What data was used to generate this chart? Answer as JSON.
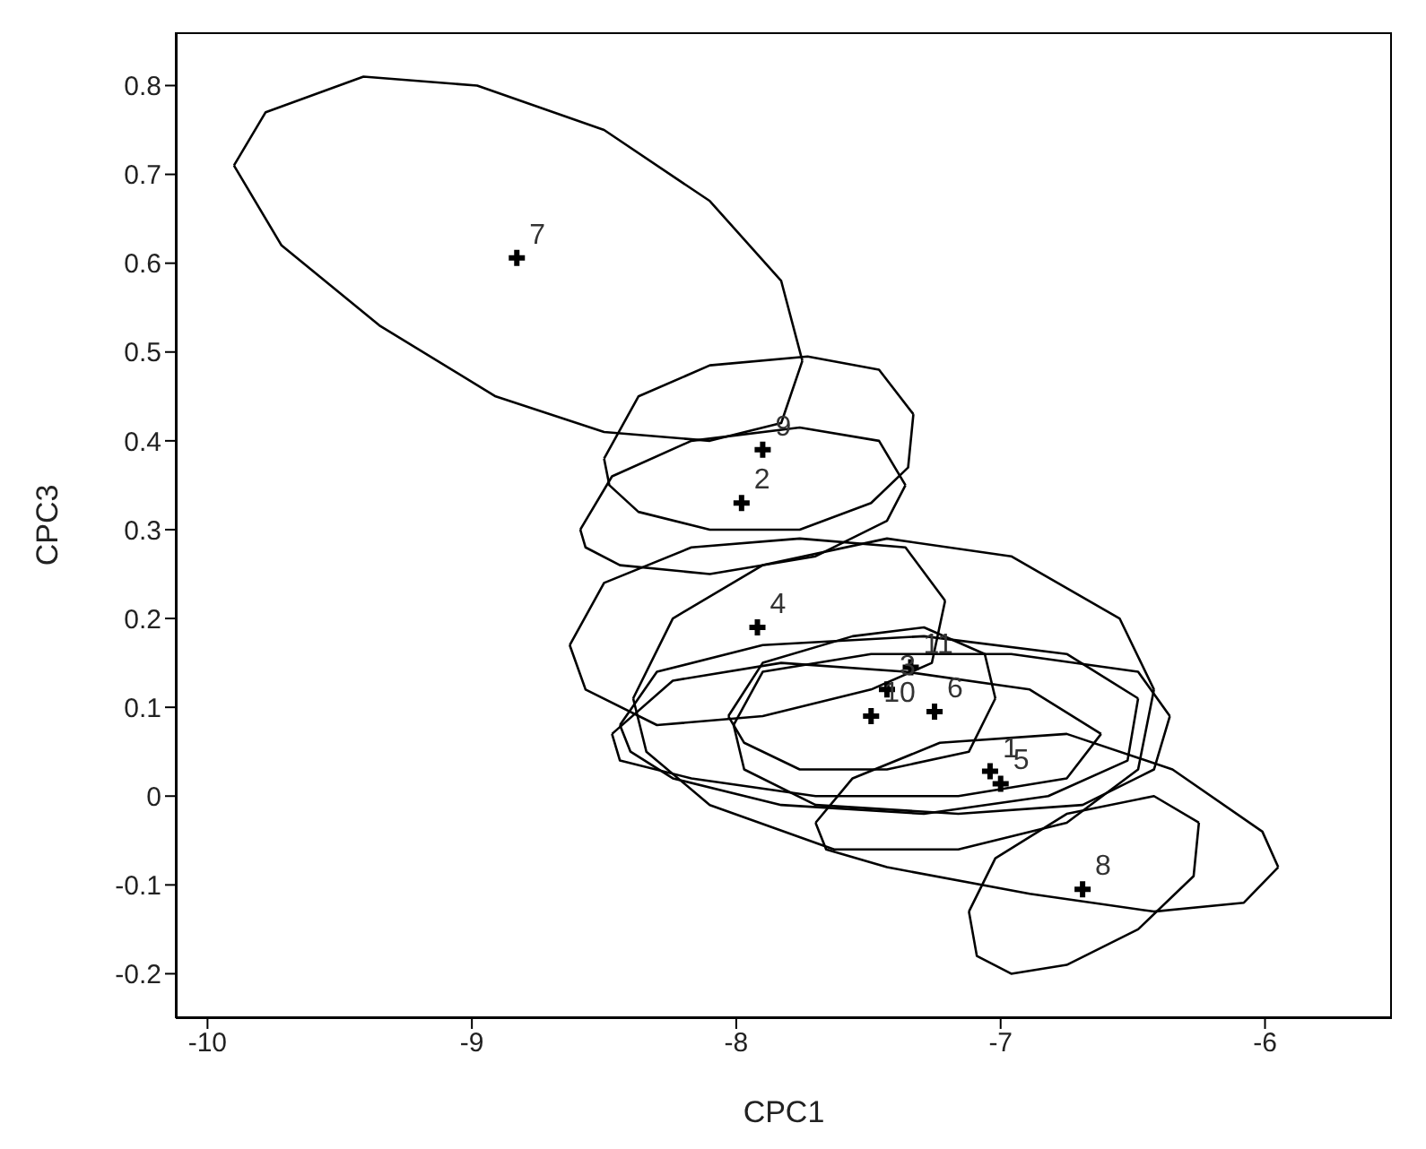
{
  "chart_data": {
    "type": "scatter",
    "xlabel": "CPC1",
    "ylabel": "CPC3",
    "xlim": [
      -10.12,
      -5.52
    ],
    "ylim": [
      -0.25,
      0.86
    ],
    "xticks": [
      -10,
      -9,
      -8,
      -7,
      -6
    ],
    "yticks": [
      -0.2,
      -0.1,
      0,
      0.1,
      0.2,
      0.3,
      0.4,
      0.5,
      0.6,
      0.7,
      0.8
    ],
    "grid": false,
    "series": [
      {
        "type": "scatter",
        "marker": "cross",
        "color": "#000000",
        "x": [
          -7.04,
          -7.98,
          -7.43,
          -7.92,
          -7.0,
          -7.25,
          -8.83,
          -6.69,
          -7.9,
          -7.49,
          -7.34
        ],
        "values": [
          0.028,
          0.33,
          0.12,
          0.19,
          0.014,
          0.095,
          0.606,
          -0.105,
          0.39,
          0.09,
          0.145
        ]
      },
      {
        "type": "line",
        "color": "#000000",
        "x": [
          -9.9,
          -9.78,
          -9.41,
          -8.98,
          -8.5,
          -8.1,
          -7.83,
          -7.75
        ],
        "values": [
          0.71,
          0.77,
          0.81,
          0.8,
          0.75,
          0.67,
          0.58,
          0.49
        ]
      },
      {
        "type": "line",
        "color": "#000000",
        "x": [
          -9.9,
          -9.72,
          -9.35,
          -8.91,
          -8.5,
          -8.1,
          -7.83,
          -7.75
        ],
        "values": [
          0.71,
          0.62,
          0.53,
          0.45,
          0.41,
          0.4,
          0.42,
          0.49
        ]
      },
      {
        "type": "line",
        "color": "#000000",
        "x": [
          -8.5,
          -8.37,
          -8.1,
          -7.73,
          -7.46,
          -7.33
        ],
        "values": [
          0.38,
          0.45,
          0.485,
          0.495,
          0.48,
          0.43
        ]
      },
      {
        "type": "line",
        "color": "#000000",
        "x": [
          -8.5,
          -8.48,
          -8.37,
          -8.1,
          -7.76,
          -7.49,
          -7.35,
          -7.33
        ],
        "values": [
          0.38,
          0.35,
          0.32,
          0.3,
          0.3,
          0.33,
          0.37,
          0.43
        ]
      },
      {
        "type": "line",
        "color": "#000000",
        "x": [
          -8.59,
          -8.47,
          -8.17,
          -7.76,
          -7.46,
          -7.36
        ],
        "values": [
          0.3,
          0.36,
          0.4,
          0.415,
          0.4,
          0.35
        ]
      },
      {
        "type": "line",
        "color": "#000000",
        "x": [
          -8.59,
          -8.57,
          -8.44,
          -8.1,
          -7.7,
          -7.43,
          -7.36
        ],
        "values": [
          0.3,
          0.28,
          0.26,
          0.25,
          0.27,
          0.31,
          0.35
        ]
      },
      {
        "type": "line",
        "color": "#000000",
        "x": [
          -8.63,
          -8.5,
          -8.17,
          -7.76,
          -7.36,
          -7.21
        ],
        "values": [
          0.17,
          0.24,
          0.28,
          0.29,
          0.28,
          0.22
        ]
      },
      {
        "type": "line",
        "color": "#000000",
        "x": [
          -8.63,
          -8.57,
          -8.3,
          -7.9,
          -7.49,
          -7.26,
          -7.21
        ],
        "values": [
          0.17,
          0.12,
          0.08,
          0.09,
          0.12,
          0.15,
          0.22
        ]
      },
      {
        "type": "line",
        "color": "#000000",
        "x": [
          -8.39,
          -8.24,
          -7.9,
          -7.43,
          -6.96,
          -6.55,
          -6.42
        ],
        "values": [
          0.11,
          0.2,
          0.26,
          0.29,
          0.27,
          0.2,
          0.12
        ]
      },
      {
        "type": "line",
        "color": "#000000",
        "x": [
          -8.39,
          -8.34,
          -8.1,
          -7.63,
          -7.16,
          -6.75,
          -6.48,
          -6.42
        ],
        "values": [
          0.11,
          0.05,
          -0.01,
          -0.06,
          -0.06,
          -0.03,
          0.03,
          0.12
        ]
      },
      {
        "type": "line",
        "color": "#000000",
        "x": [
          -8.44,
          -8.3,
          -7.9,
          -7.29,
          -6.75,
          -6.48
        ],
        "values": [
          0.08,
          0.14,
          0.17,
          0.18,
          0.16,
          0.11
        ]
      },
      {
        "type": "line",
        "color": "#000000",
        "x": [
          -8.44,
          -8.4,
          -8.24,
          -7.83,
          -7.29,
          -6.82,
          -6.52,
          -6.48
        ],
        "values": [
          0.08,
          0.05,
          0.02,
          -0.01,
          -0.02,
          0,
          0.04,
          0.11
        ]
      },
      {
        "type": "line",
        "color": "#000000",
        "x": [
          -8.03,
          -7.9,
          -7.56,
          -7.29,
          -7.06,
          -7.02
        ],
        "values": [
          0.09,
          0.15,
          0.18,
          0.19,
          0.16,
          0.11
        ]
      },
      {
        "type": "line",
        "color": "#000000",
        "x": [
          -8.03,
          -7.97,
          -7.76,
          -7.43,
          -7.12,
          -7.02
        ],
        "values": [
          0.09,
          0.06,
          0.03,
          0.03,
          0.05,
          0.11
        ]
      },
      {
        "type": "line",
        "color": "#000000",
        "x": [
          -8.01,
          -7.9,
          -7.49,
          -6.96,
          -6.48,
          -6.36
        ],
        "values": [
          0.08,
          0.14,
          0.16,
          0.16,
          0.14,
          0.09
        ]
      },
      {
        "type": "line",
        "color": "#000000",
        "x": [
          -8.01,
          -7.97,
          -7.7,
          -7.16,
          -6.69,
          -6.42,
          -6.36
        ],
        "values": [
          0.08,
          0.03,
          -0.01,
          -0.02,
          -0.01,
          0.03,
          0.09
        ]
      },
      {
        "type": "line",
        "color": "#000000",
        "x": [
          -8.47,
          -8.24,
          -7.83,
          -7.36,
          -6.89,
          -6.62
        ],
        "values": [
          0.07,
          0.13,
          0.15,
          0.14,
          0.12,
          0.07
        ]
      },
      {
        "type": "line",
        "color": "#000000",
        "x": [
          -8.47,
          -8.44,
          -8.17,
          -7.7,
          -7.16,
          -6.75,
          -6.62
        ],
        "values": [
          0.07,
          0.04,
          0.02,
          0,
          0,
          0.02,
          0.07
        ]
      },
      {
        "type": "line",
        "color": "#000000",
        "x": [
          -7.12,
          -7.02,
          -6.75,
          -6.42,
          -6.25
        ],
        "values": [
          -0.13,
          -0.07,
          -0.02,
          0,
          -0.03
        ]
      },
      {
        "type": "line",
        "color": "#000000",
        "x": [
          -7.12,
          -7.09,
          -6.96,
          -6.75,
          -6.48,
          -6.27,
          -6.25
        ],
        "values": [
          -0.13,
          -0.18,
          -0.2,
          -0.19,
          -0.15,
          -0.09,
          -0.03
        ]
      },
      {
        "type": "line",
        "color": "#000000",
        "x": [
          -7.7,
          -7.56,
          -7.23,
          -6.75,
          -6.35,
          -6.01,
          -5.95
        ],
        "values": [
          -0.03,
          0.02,
          0.06,
          0.07,
          0.03,
          -0.04,
          -0.08
        ]
      },
      {
        "type": "line",
        "color": "#000000",
        "x": [
          -7.7,
          -7.66,
          -7.43,
          -6.89,
          -6.42,
          -6.08,
          -5.95
        ],
        "values": [
          -0.03,
          -0.06,
          -0.08,
          -0.11,
          -0.13,
          -0.12,
          -0.08
        ]
      }
    ],
    "annotations": [
      {
        "text": "1",
        "x": -7.04,
        "y": 0.028
      },
      {
        "text": "2",
        "x": -7.98,
        "y": 0.33
      },
      {
        "text": "3",
        "x": -7.43,
        "y": 0.12
      },
      {
        "text": "4",
        "x": -7.92,
        "y": 0.19
      },
      {
        "text": "5",
        "x": -7.0,
        "y": 0.014
      },
      {
        "text": "6",
        "x": -7.25,
        "y": 0.095
      },
      {
        "text": "7",
        "x": -8.83,
        "y": 0.606
      },
      {
        "text": "8",
        "x": -6.69,
        "y": -0.105
      },
      {
        "text": "9",
        "x": -7.9,
        "y": 0.39
      },
      {
        "text": "10",
        "x": -7.49,
        "y": 0.09
      },
      {
        "text": "11",
        "x": -7.34,
        "y": 0.145
      }
    ]
  }
}
